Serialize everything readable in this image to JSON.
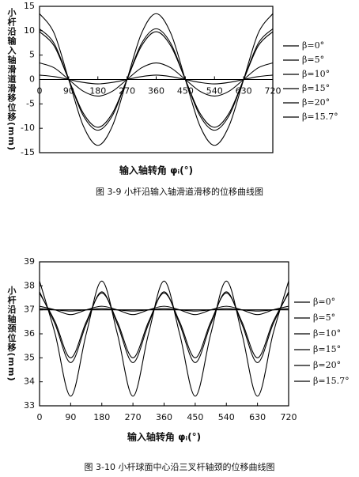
{
  "chart_data": [
    {
      "type": "line",
      "title": "图 3-9 小杆沿输入轴滑道滑移的位移曲线图",
      "x_label": "输入轴转角 φᵢ(°)",
      "y_label": "小杆沿输入轴滑道滑移位移(mm)",
      "x": [
        0,
        45,
        90,
        135,
        180,
        225,
        270,
        315,
        360,
        405,
        450,
        495,
        540,
        585,
        630,
        675,
        720
      ],
      "xlim": [
        0,
        720
      ],
      "xticks": [
        0,
        90,
        180,
        270,
        360,
        450,
        540,
        630,
        720
      ],
      "ylim": [
        -15,
        15
      ],
      "yticks": [
        -15,
        -10,
        -5,
        0,
        5,
        10,
        15
      ],
      "series": [
        {
          "name": "β=0°",
          "color": "#000000",
          "values": [
            0,
            0,
            0,
            0,
            0,
            0,
            0,
            0,
            0,
            0,
            0,
            0,
            0,
            0,
            0,
            0,
            0
          ]
        },
        {
          "name": "β=5°",
          "color": "#000000",
          "values": [
            0.9,
            0.6,
            0,
            -0.6,
            -0.9,
            -0.6,
            0,
            0.6,
            0.9,
            0.6,
            0,
            -0.6,
            -0.9,
            -0.6,
            0,
            0.6,
            0.9
          ]
        },
        {
          "name": "β=10°",
          "color": "#000000",
          "values": [
            3.4,
            2.4,
            0,
            -2.4,
            -3.4,
            -2.4,
            0,
            2.4,
            3.4,
            2.4,
            0,
            -2.4,
            -3.4,
            -2.4,
            0,
            2.4,
            3.4
          ]
        },
        {
          "name": "β=15°",
          "color": "#000000",
          "values": [
            9.8,
            6.9,
            0,
            -6.9,
            -9.8,
            -6.9,
            0,
            6.9,
            9.8,
            6.9,
            0,
            -6.9,
            -9.8,
            -6.9,
            0,
            6.9,
            9.8
          ]
        },
        {
          "name": "β=20°",
          "color": "#000000",
          "values": [
            13.5,
            9.5,
            0,
            -9.5,
            -13.5,
            -9.5,
            0,
            9.5,
            13.5,
            9.5,
            0,
            -9.5,
            -13.5,
            -9.5,
            0,
            9.5,
            13.5
          ]
        },
        {
          "name": "β=15.7°",
          "color": "#000000",
          "values": [
            10.4,
            7.4,
            0,
            -7.4,
            -10.4,
            -7.4,
            0,
            7.4,
            10.4,
            7.4,
            0,
            -7.4,
            -10.4,
            -7.4,
            0,
            7.4,
            10.4
          ]
        }
      ]
    },
    {
      "type": "line",
      "title": "图 3-10 小杆球面中心沿三叉杆轴颈的位移曲线图",
      "x_label": "输入轴转角 φᵢ(°)",
      "y_label": "小杆沿轴颈位移(mm)",
      "x": [
        0,
        45,
        90,
        135,
        180,
        225,
        270,
        315,
        360,
        405,
        450,
        495,
        540,
        585,
        630,
        675,
        720
      ],
      "xlim": [
        0,
        720
      ],
      "xticks": [
        0,
        90,
        180,
        270,
        360,
        450,
        540,
        630,
        720
      ],
      "ylim": [
        33,
        39
      ],
      "yticks": [
        33,
        34,
        35,
        36,
        37,
        38,
        39
      ],
      "series": [
        {
          "name": "β=0°",
          "color": "#000000",
          "values": [
            37,
            37,
            37,
            37,
            37,
            37,
            37,
            37,
            37,
            37,
            37,
            37,
            37,
            37,
            37,
            37,
            37
          ]
        },
        {
          "name": "β=5°",
          "color": "#000000",
          "values": [
            37.05,
            37,
            36.95,
            37,
            37.05,
            37,
            36.95,
            37,
            37.05,
            37,
            36.95,
            37,
            37.05,
            37,
            36.95,
            37,
            37.05
          ]
        },
        {
          "name": "β=10°",
          "color": "#000000",
          "values": [
            37.15,
            37,
            36.8,
            37,
            37.15,
            37,
            36.8,
            37,
            37.15,
            37,
            36.8,
            37,
            37.15,
            37,
            36.8,
            37,
            37.15
          ]
        },
        {
          "name": "β=15°",
          "color": "#000000",
          "values": [
            37.7,
            36.5,
            35,
            36.5,
            37.7,
            36.5,
            35,
            36.5,
            37.7,
            36.5,
            35,
            36.5,
            37.7,
            36.5,
            35,
            36.5,
            37.7
          ]
        },
        {
          "name": "β=20°",
          "color": "#000000",
          "values": [
            38.2,
            36,
            33.4,
            36,
            38.2,
            36,
            33.4,
            36,
            38.2,
            36,
            33.4,
            36,
            38.2,
            36,
            33.4,
            36,
            38.2
          ]
        },
        {
          "name": "β=15.7°",
          "color": "#000000",
          "values": [
            37.75,
            36.4,
            34.8,
            36.4,
            37.75,
            36.4,
            34.8,
            36.4,
            37.75,
            36.4,
            34.8,
            36.4,
            37.75,
            36.4,
            34.8,
            36.4,
            37.75
          ]
        }
      ]
    }
  ]
}
